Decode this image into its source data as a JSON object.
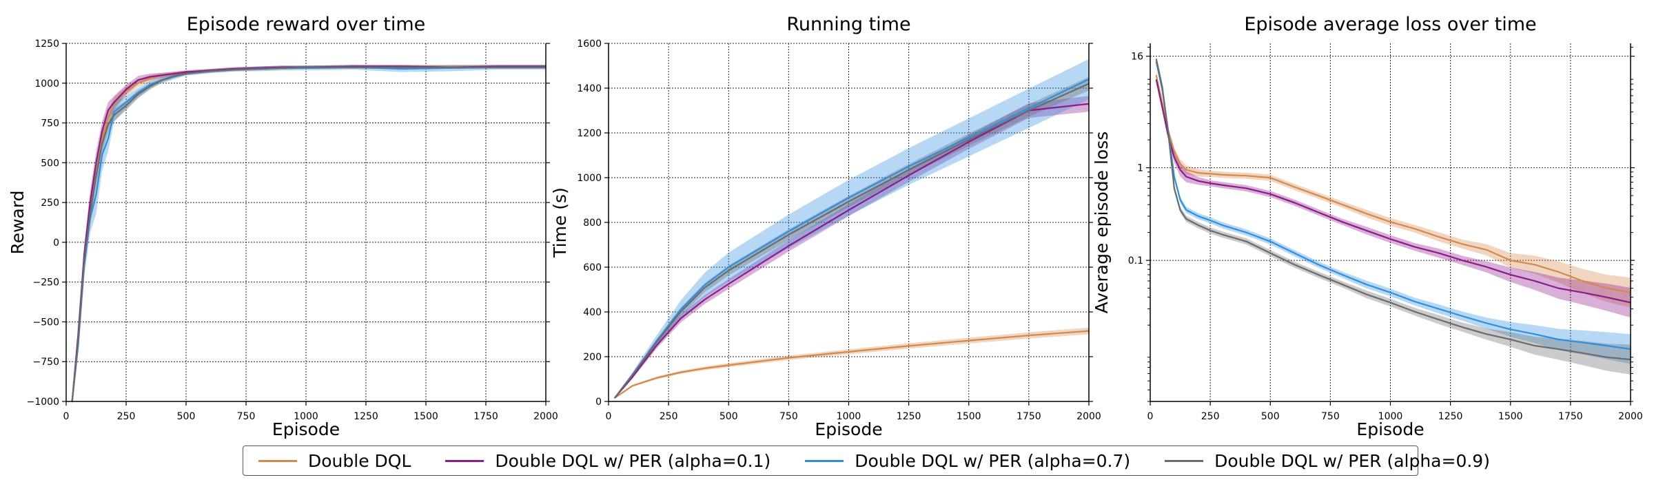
{
  "colors": {
    "ddql": "#D4894A",
    "per01": "#8B1A8B",
    "per07": "#2E8FE0",
    "per09": "#6B6B6B"
  },
  "legend": {
    "items": [
      {
        "label": "Double DQL",
        "color": "#D4894A"
      },
      {
        "label": "Double DQL w/ PER (alpha=0.1)",
        "color": "#8B1A8B"
      },
      {
        "label": "Double DQL w/ PER (alpha=0.7)",
        "color": "#2E8FE0"
      },
      {
        "label": "Double DQL w/ PER (alpha=0.9)",
        "color": "#6B6B6B"
      }
    ]
  },
  "chart_data": [
    {
      "type": "line",
      "title": "Episode reward over time",
      "xlabel": "Episode",
      "ylabel": "Reward",
      "xlim": [
        0,
        2000
      ],
      "ylim": [
        -1000,
        1250
      ],
      "xticks": [
        0,
        250,
        500,
        750,
        1000,
        1250,
        1500,
        1750,
        2000
      ],
      "yticks": [
        -1000,
        -750,
        -500,
        -250,
        0,
        250,
        500,
        750,
        1000,
        1250
      ],
      "yscale": "linear",
      "grid": true,
      "series": [
        {
          "name": "Double DQL",
          "color": "#D4894A",
          "x": [
            25,
            50,
            75,
            100,
            125,
            150,
            175,
            200,
            250,
            300,
            350,
            400,
            450,
            500,
            600,
            700,
            800,
            900,
            1000,
            1200,
            1400,
            1600,
            1800,
            2000
          ],
          "y": [
            -1000,
            -600,
            -100,
            200,
            450,
            650,
            780,
            870,
            950,
            1000,
            1030,
            1050,
            1060,
            1070,
            1080,
            1090,
            1095,
            1100,
            1100,
            1105,
            1105,
            1105,
            1105,
            1105
          ],
          "band": [
            15,
            40,
            60,
            70,
            70,
            60,
            50,
            40,
            30,
            25,
            20,
            15,
            12,
            10,
            10,
            10,
            10,
            10,
            10,
            10,
            10,
            10,
            10,
            10
          ]
        },
        {
          "name": "Double DQL w/ PER (alpha=0.1)",
          "color": "#8B1A8B",
          "x": [
            25,
            50,
            75,
            100,
            125,
            150,
            175,
            200,
            250,
            300,
            350,
            400,
            450,
            500,
            600,
            700,
            800,
            900,
            1000,
            1200,
            1400,
            1600,
            1800,
            2000
          ],
          "y": [
            -1000,
            -580,
            -80,
            250,
            500,
            700,
            830,
            880,
            960,
            1020,
            1040,
            1050,
            1060,
            1070,
            1080,
            1090,
            1095,
            1100,
            1100,
            1105,
            1105,
            1100,
            1105,
            1105
          ],
          "band": [
            15,
            40,
            60,
            70,
            70,
            60,
            50,
            40,
            30,
            25,
            20,
            15,
            12,
            10,
            10,
            10,
            10,
            10,
            10,
            10,
            10,
            10,
            10,
            10
          ]
        },
        {
          "name": "Double DQL w/ PER (alpha=0.7)",
          "color": "#2E8FE0",
          "x": [
            25,
            50,
            75,
            100,
            125,
            150,
            175,
            200,
            250,
            300,
            350,
            400,
            450,
            500,
            600,
            700,
            800,
            900,
            1000,
            1200,
            1400,
            1600,
            1800,
            2000
          ],
          "y": [
            -1000,
            -650,
            -150,
            150,
            300,
            550,
            650,
            820,
            880,
            940,
            990,
            1020,
            1040,
            1060,
            1075,
            1085,
            1090,
            1095,
            1095,
            1100,
            1090,
            1095,
            1100,
            1100
          ],
          "band": [
            15,
            40,
            70,
            90,
            120,
            100,
            80,
            60,
            40,
            30,
            25,
            20,
            15,
            12,
            12,
            12,
            15,
            15,
            15,
            15,
            20,
            20,
            15,
            15
          ]
        },
        {
          "name": "Double DQL w/ PER (alpha=0.9)",
          "color": "#6B6B6B",
          "x": [
            25,
            50,
            75,
            100,
            125,
            150,
            175,
            200,
            250,
            300,
            350,
            400,
            450,
            500,
            600,
            700,
            800,
            900,
            1000,
            1200,
            1400,
            1600,
            1800,
            2000
          ],
          "y": [
            -1000,
            -620,
            -120,
            180,
            420,
            620,
            740,
            800,
            860,
            930,
            980,
            1020,
            1045,
            1060,
            1075,
            1085,
            1090,
            1095,
            1100,
            1100,
            1100,
            1100,
            1100,
            1100
          ],
          "band": [
            15,
            40,
            60,
            70,
            70,
            60,
            50,
            40,
            30,
            25,
            20,
            15,
            12,
            10,
            10,
            10,
            10,
            10,
            10,
            10,
            10,
            10,
            10,
            10
          ]
        }
      ]
    },
    {
      "type": "line",
      "title": "Running time",
      "xlabel": "Episode",
      "ylabel": "Time (s)",
      "xlim": [
        0,
        2000
      ],
      "ylim": [
        0,
        1600
      ],
      "xticks": [
        0,
        250,
        500,
        750,
        1000,
        1250,
        1500,
        1750,
        2000
      ],
      "yticks": [
        0,
        200,
        400,
        600,
        800,
        1000,
        1200,
        1400,
        1600
      ],
      "yscale": "linear",
      "grid": true,
      "series": [
        {
          "name": "Double DQL",
          "color": "#D4894A",
          "x": [
            25,
            100,
            200,
            300,
            400,
            500,
            750,
            1000,
            1250,
            1500,
            1750,
            2000
          ],
          "y": [
            15,
            70,
            105,
            130,
            148,
            162,
            195,
            222,
            248,
            272,
            295,
            315
          ],
          "band": [
            2,
            5,
            6,
            7,
            8,
            9,
            10,
            11,
            12,
            13,
            14,
            15
          ]
        },
        {
          "name": "Double DQL w/ PER (alpha=0.1)",
          "color": "#8B1A8B",
          "x": [
            25,
            100,
            200,
            300,
            400,
            500,
            750,
            1000,
            1250,
            1500,
            1750,
            2000
          ],
          "y": [
            15,
            110,
            250,
            370,
            455,
            525,
            695,
            855,
            1010,
            1160,
            1300,
            1330
          ],
          "band": [
            3,
            8,
            14,
            18,
            20,
            22,
            25,
            27,
            29,
            31,
            33,
            35
          ]
        },
        {
          "name": "Double DQL w/ PER (alpha=0.7)",
          "color": "#2E8FE0",
          "x": [
            25,
            100,
            200,
            300,
            400,
            500,
            750,
            1000,
            1250,
            1500,
            1750,
            2000
          ],
          "y": [
            15,
            120,
            270,
            410,
            520,
            600,
            760,
            910,
            1050,
            1180,
            1310,
            1440
          ],
          "band": [
            4,
            12,
            25,
            40,
            55,
            65,
            75,
            80,
            82,
            85,
            88,
            90
          ]
        },
        {
          "name": "Double DQL w/ PER (alpha=0.9)",
          "color": "#6B6B6B",
          "x": [
            25,
            100,
            200,
            300,
            400,
            500,
            750,
            1000,
            1250,
            1500,
            1750,
            2000
          ],
          "y": [
            15,
            118,
            265,
            400,
            508,
            585,
            745,
            893,
            1035,
            1170,
            1300,
            1420
          ],
          "band": [
            3,
            8,
            14,
            18,
            20,
            22,
            24,
            25,
            26,
            27,
            28,
            30
          ]
        }
      ]
    },
    {
      "type": "line",
      "title": "Episode average loss over time",
      "xlabel": "Episode",
      "ylabel": "Average episode loss",
      "xlim": [
        0,
        2000
      ],
      "ylim": [
        0.003,
        22
      ],
      "xticks": [
        0,
        250,
        500,
        750,
        1000,
        1250,
        1500,
        1750,
        2000
      ],
      "yticks": [
        0.1,
        1,
        16
      ],
      "yticklabels": [
        "0.1",
        "1",
        "16"
      ],
      "yscale": "log",
      "grid": true,
      "series": [
        {
          "name": "Double DQL",
          "color": "#D4894A",
          "x": [
            25,
            50,
            75,
            100,
            125,
            150,
            200,
            250,
            300,
            400,
            500,
            600,
            700,
            800,
            900,
            1000,
            1100,
            1200,
            1300,
            1400,
            1500,
            1600,
            1700,
            1800,
            1900,
            2000
          ],
          "y": [
            10,
            5,
            2.5,
            1.5,
            1.1,
            0.95,
            0.88,
            0.86,
            0.84,
            0.82,
            0.78,
            0.62,
            0.5,
            0.4,
            0.32,
            0.26,
            0.22,
            0.18,
            0.15,
            0.13,
            0.1,
            0.09,
            0.075,
            0.06,
            0.05,
            0.045
          ],
          "band": [
            0.08,
            0.08,
            0.08,
            0.1,
            0.12,
            0.12,
            0.1,
            0.08,
            0.08,
            0.08,
            0.08,
            0.08,
            0.08,
            0.08,
            0.1,
            0.1,
            0.1,
            0.12,
            0.12,
            0.15,
            0.2,
            0.25,
            0.3,
            0.35,
            0.4,
            0.45
          ]
        },
        {
          "name": "Double DQL w/ PER (alpha=0.1)",
          "color": "#8B1A8B",
          "x": [
            25,
            50,
            75,
            100,
            125,
            150,
            200,
            250,
            300,
            400,
            500,
            600,
            700,
            800,
            900,
            1000,
            1100,
            1200,
            1300,
            1400,
            1500,
            1600,
            1700,
            1800,
            1900,
            2000
          ],
          "y": [
            9,
            4.5,
            2.2,
            1.3,
            0.95,
            0.8,
            0.72,
            0.68,
            0.65,
            0.6,
            0.52,
            0.42,
            0.33,
            0.26,
            0.21,
            0.17,
            0.14,
            0.12,
            0.1,
            0.085,
            0.07,
            0.06,
            0.05,
            0.045,
            0.04,
            0.035
          ],
          "band": [
            0.08,
            0.08,
            0.1,
            0.15,
            0.18,
            0.15,
            0.1,
            0.08,
            0.08,
            0.08,
            0.08,
            0.08,
            0.08,
            0.08,
            0.1,
            0.1,
            0.1,
            0.12,
            0.12,
            0.15,
            0.2,
            0.25,
            0.3,
            0.35,
            0.4,
            0.45
          ]
        },
        {
          "name": "Double DQL w/ PER (alpha=0.7)",
          "color": "#2E8FE0",
          "x": [
            25,
            50,
            75,
            100,
            125,
            150,
            200,
            250,
            300,
            400,
            500,
            600,
            700,
            800,
            900,
            1000,
            1100,
            1200,
            1300,
            1400,
            1500,
            1600,
            1700,
            1800,
            1900,
            2000
          ],
          "y": [
            14,
            7,
            2.5,
            0.8,
            0.45,
            0.35,
            0.3,
            0.27,
            0.24,
            0.2,
            0.16,
            0.12,
            0.09,
            0.07,
            0.055,
            0.045,
            0.036,
            0.03,
            0.025,
            0.021,
            0.018,
            0.016,
            0.014,
            0.013,
            0.012,
            0.011
          ],
          "band": [
            0.06,
            0.06,
            0.06,
            0.08,
            0.08,
            0.08,
            0.08,
            0.08,
            0.08,
            0.08,
            0.08,
            0.08,
            0.08,
            0.08,
            0.1,
            0.1,
            0.1,
            0.12,
            0.12,
            0.15,
            0.2,
            0.25,
            0.3,
            0.35,
            0.4,
            0.45
          ]
        },
        {
          "name": "Double DQL w/ PER (alpha=0.9)",
          "color": "#6B6B6B",
          "x": [
            25,
            50,
            75,
            100,
            125,
            150,
            200,
            250,
            300,
            400,
            500,
            600,
            700,
            800,
            900,
            1000,
            1100,
            1200,
            1300,
            1400,
            1500,
            1600,
            1700,
            1800,
            1900,
            2000
          ],
          "y": [
            15,
            7.5,
            2.4,
            0.6,
            0.35,
            0.28,
            0.24,
            0.21,
            0.19,
            0.16,
            0.12,
            0.09,
            0.07,
            0.055,
            0.043,
            0.035,
            0.028,
            0.023,
            0.019,
            0.016,
            0.014,
            0.012,
            0.011,
            0.01,
            0.009,
            0.0085
          ],
          "band": [
            0.06,
            0.06,
            0.06,
            0.08,
            0.08,
            0.08,
            0.08,
            0.08,
            0.08,
            0.08,
            0.08,
            0.08,
            0.08,
            0.08,
            0.1,
            0.1,
            0.1,
            0.12,
            0.12,
            0.15,
            0.2,
            0.25,
            0.3,
            0.35,
            0.4,
            0.45
          ]
        }
      ]
    }
  ]
}
